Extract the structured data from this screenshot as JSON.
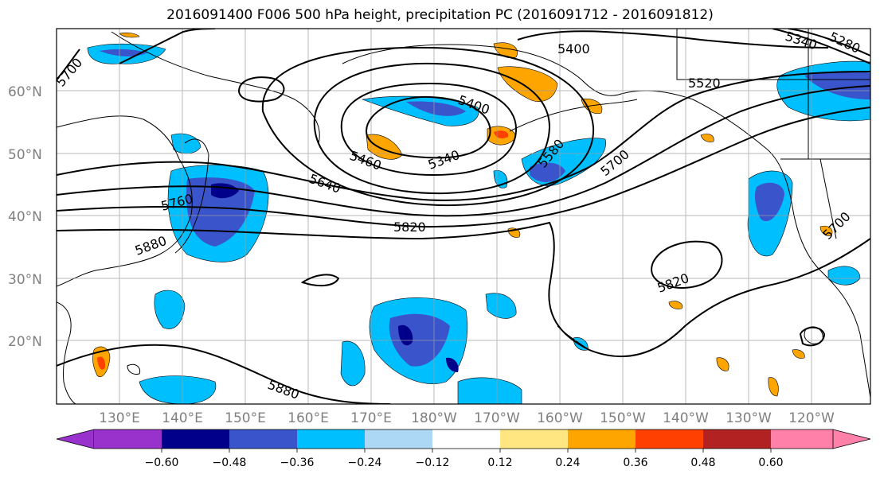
{
  "title": "2016091400 F006 500 hPa height, precipitation PC (2016091712 - 2016091812)",
  "map": {
    "lat_labels": [
      "60°N",
      "50°N",
      "40°N",
      "30°N",
      "20°N"
    ],
    "lon_labels": [
      "130°E",
      "140°E",
      "150°E",
      "160°E",
      "170°E",
      "180°W",
      "170°W",
      "160°W",
      "150°W",
      "140°W",
      "130°W",
      "120°W"
    ],
    "contour_labels": [
      "5400",
      "5520",
      "5340",
      "5280",
      "5700",
      "5400",
      "5340",
      "5460",
      "5640",
      "5580",
      "5700",
      "5760",
      "5820",
      "5880",
      "5820",
      "5700",
      "5880"
    ]
  },
  "colorbar": {
    "ticks": [
      "−0.60",
      "−0.48",
      "−0.36",
      "−0.24",
      "−0.12",
      "0.12",
      "0.24",
      "0.36",
      "0.48",
      "0.60"
    ],
    "colors": {
      "lt_-0.60": "#9932CC",
      "-0.60_-0.48": "#00008B",
      "-0.48_-0.36": "#3A55CC",
      "-0.36_-0.24": "#00BFFF",
      "-0.24_-0.12": "#ADD8F5",
      "-0.12_0.12": "#FFFFFF",
      "0.12_0.24": "#FFE680",
      "0.24_0.36": "#FFA500",
      "0.36_0.48": "#FF4000",
      "0.48_0.60": "#B22222",
      "gt_0.60": "#FF80A8"
    }
  }
}
